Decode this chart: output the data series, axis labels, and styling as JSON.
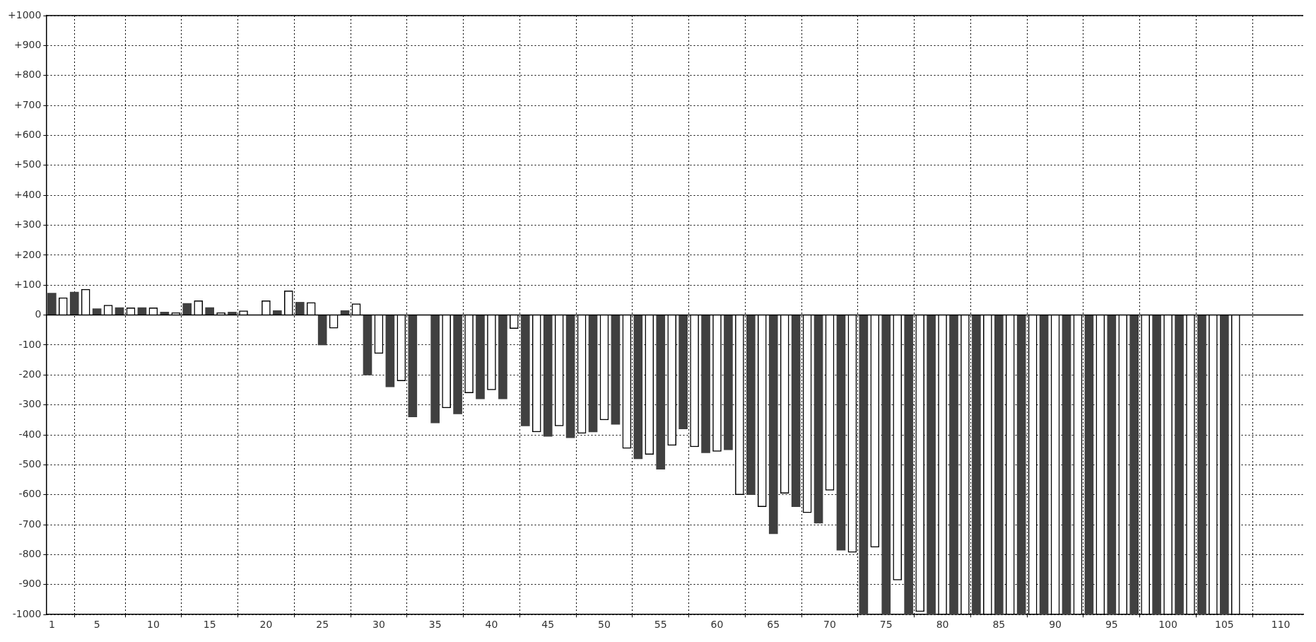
{
  "chart_data": {
    "type": "bar",
    "series": [
      {
        "color": "#404040",
        "x": [
          1,
          3,
          5,
          7,
          9,
          11,
          13,
          15,
          17,
          19,
          21,
          23,
          25,
          27,
          29,
          31,
          33,
          35,
          37,
          39,
          41,
          43,
          45,
          47,
          49,
          51,
          53,
          55,
          57,
          59,
          61,
          63,
          65,
          67,
          69,
          71,
          73,
          75,
          77,
          79,
          81,
          83,
          85,
          87,
          89,
          91,
          93,
          95,
          97,
          99,
          101,
          103,
          105
        ],
        "values": [
          73,
          77,
          21,
          25,
          25,
          10,
          39,
          25,
          10,
          0,
          15,
          43,
          -100,
          15,
          -200,
          -240,
          -340,
          -360,
          -330,
          -280,
          -280,
          -370,
          -405,
          -410,
          -390,
          -365,
          -480,
          -515,
          -380,
          -460,
          -450,
          -600,
          -730,
          -640,
          -695,
          -785,
          -1000,
          -1000,
          -1000,
          -1000,
          -1000,
          -1000,
          -1000,
          -1000,
          -1000,
          -1000,
          -1000,
          -1000,
          -1000,
          -1000,
          -1000,
          -1000,
          -1000
        ]
      },
      {
        "color": "#ffffff",
        "x": [
          2,
          4,
          6,
          8,
          10,
          12,
          14,
          16,
          18,
          20,
          22,
          24,
          26,
          28,
          30,
          32,
          34,
          36,
          38,
          40,
          42,
          44,
          46,
          48,
          50,
          52,
          54,
          56,
          58,
          60,
          62,
          64,
          66,
          68,
          70,
          72,
          74,
          76,
          78,
          80,
          82,
          84,
          86,
          88,
          90,
          92,
          94,
          96,
          98,
          100,
          102,
          104,
          106
        ],
        "values": [
          58,
          86,
          33,
          24,
          24,
          8,
          48,
          8,
          14,
          48,
          81,
          42,
          -44,
          38,
          -128,
          -220,
          0,
          -310,
          -260,
          -250,
          -45,
          -390,
          -370,
          -395,
          -350,
          -445,
          -465,
          -435,
          -440,
          -455,
          -600,
          -640,
          -595,
          -660,
          -585,
          -792,
          -775,
          -885,
          -990,
          -1000,
          -1000,
          -1000,
          -1000,
          -1000,
          -1000,
          -1000,
          -1000,
          -1000,
          -1000,
          -1000,
          -1000,
          -1000,
          -1000
        ]
      }
    ],
    "xlim": [
      0.5,
      112
    ],
    "xticks": [
      1,
      5,
      10,
      15,
      20,
      25,
      30,
      35,
      40,
      45,
      50,
      55,
      60,
      65,
      70,
      75,
      80,
      85,
      90,
      95,
      100,
      105,
      110
    ],
    "ylim": [
      -1000,
      1000
    ],
    "yticks": [
      -1000,
      -900,
      -800,
      -700,
      -600,
      -500,
      -400,
      -300,
      -200,
      -100,
      0,
      {
        "value": 100,
        "label": "+100"
      },
      {
        "value": 200,
        "label": "+200"
      },
      {
        "value": 300,
        "label": "+300"
      },
      {
        "value": 400,
        "label": "+400"
      },
      {
        "value": 500,
        "label": "+500"
      },
      {
        "value": 600,
        "label": "+600"
      },
      {
        "value": 700,
        "label": "+700"
      },
      {
        "value": 800,
        "label": "+800"
      },
      {
        "value": 900,
        "label": "+900"
      },
      {
        "value": 1000,
        "label": "+1000"
      }
    ],
    "grid": true
  }
}
